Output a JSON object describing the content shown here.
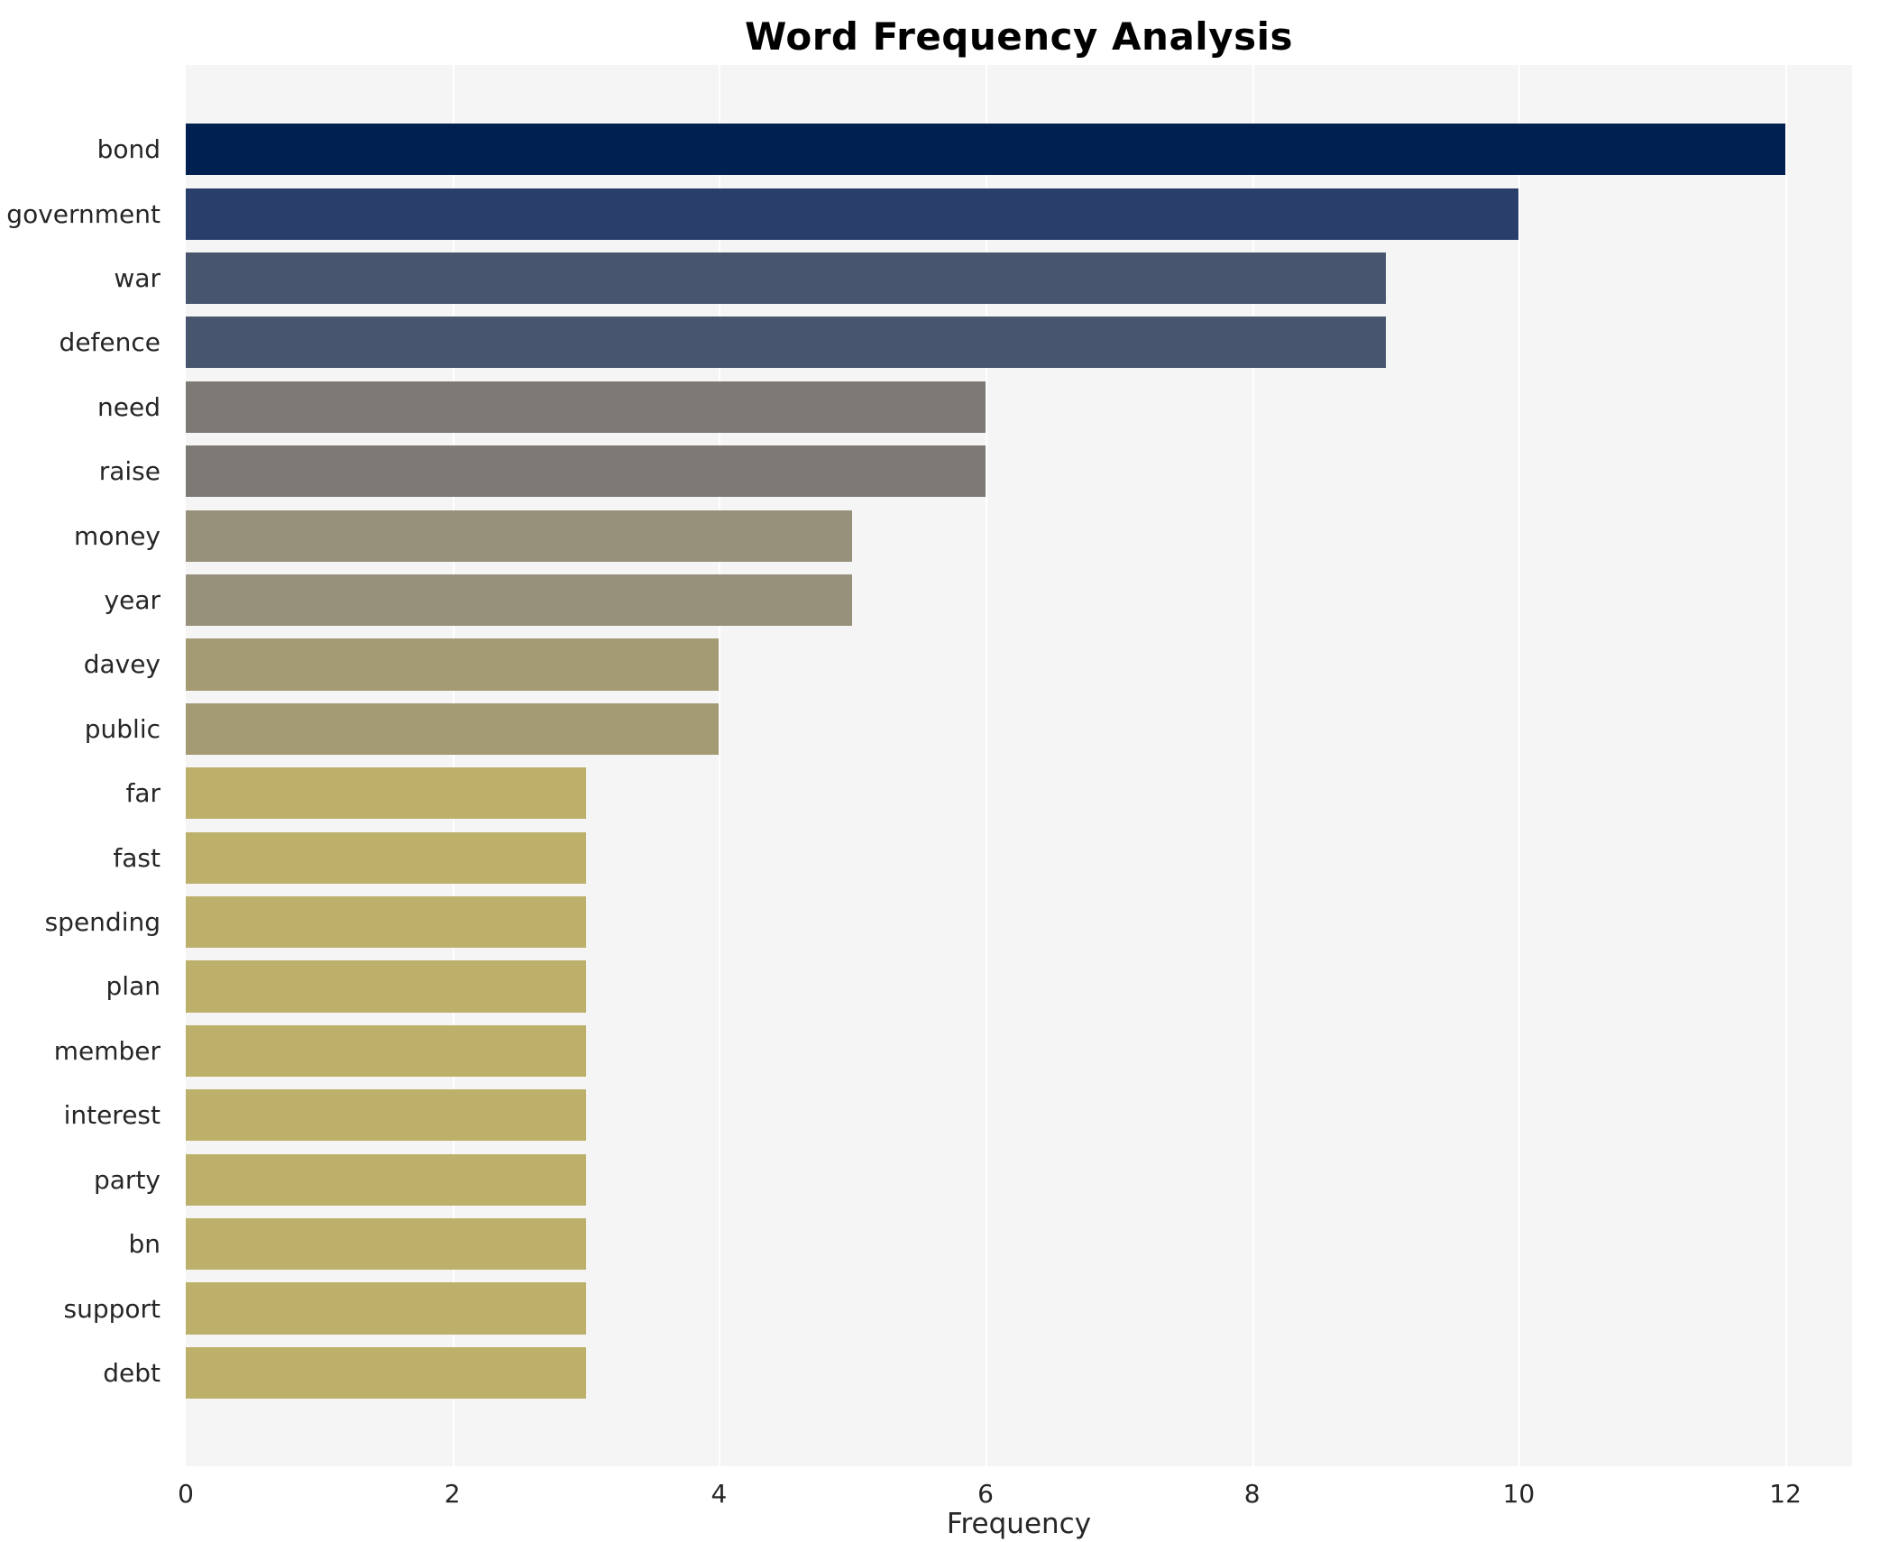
{
  "chart_data": {
    "type": "bar",
    "orientation": "horizontal",
    "title": "Word Frequency Analysis",
    "xlabel": "Frequency",
    "ylabel": "",
    "xlim": [
      0,
      12.5
    ],
    "xticks": [
      0,
      2,
      4,
      6,
      8,
      10,
      12
    ],
    "grid": true,
    "legend": false,
    "categories": [
      "bond",
      "government",
      "war",
      "defence",
      "need",
      "raise",
      "money",
      "year",
      "davey",
      "public",
      "far",
      "fast",
      "spending",
      "plan",
      "member",
      "interest",
      "party",
      "bn",
      "support",
      "debt"
    ],
    "values": [
      12,
      10,
      9,
      9,
      6,
      6,
      5,
      5,
      4,
      4,
      3,
      3,
      3,
      3,
      3,
      3,
      3,
      3,
      3,
      3
    ],
    "bar_colors": [
      "#002051",
      "#2a3e6c",
      "#47556e",
      "#47556e",
      "#7d7a76",
      "#7d7a76",
      "#97907a",
      "#97907a",
      "#a49a74",
      "#a49a74",
      "#bdb06b",
      "#bdb06b",
      "#bdb06b",
      "#bdb06b",
      "#bdb06b",
      "#bdb06b",
      "#bdb06b",
      "#bdb06b",
      "#bdb06b",
      "#bdb06b"
    ],
    "plot_bg_color": "#f5f5f5",
    "page_bg_color": "#ffffff",
    "text_color": "#262626"
  }
}
